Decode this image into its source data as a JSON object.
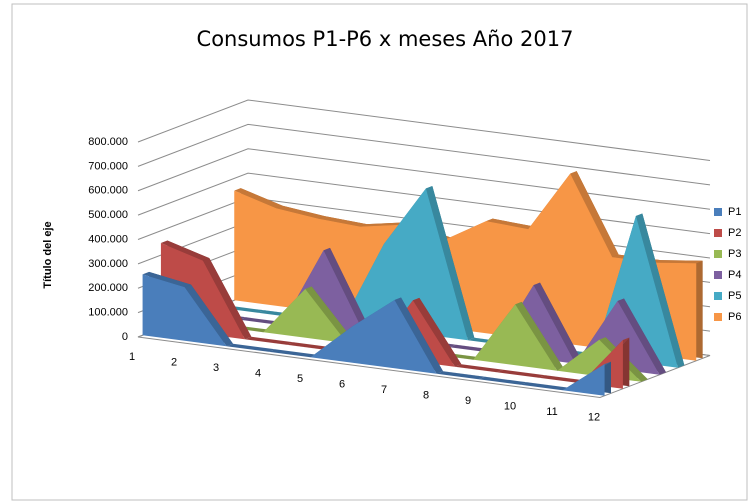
{
  "chart_data": {
    "type": "area",
    "title": "Consumos P1-P6 x meses Año 2017",
    "y_label": "Título del eje",
    "categories": [
      "1",
      "2",
      "3",
      "4",
      "5",
      "6",
      "7",
      "8",
      "9",
      "10",
      "11",
      "12"
    ],
    "series": [
      {
        "name": "P1",
        "color": "#4a7ebb",
        "values": [
          250000,
          220000,
          0,
          0,
          0,
          150000,
          280000,
          0,
          0,
          0,
          0,
          130000
        ]
      },
      {
        "name": "P2",
        "color": "#be4b48",
        "values": [
          350000,
          300000,
          0,
          0,
          0,
          0,
          250000,
          0,
          0,
          0,
          0,
          200000
        ]
      },
      {
        "name": "P3",
        "color": "#98b954",
        "values": [
          0,
          0,
          0,
          200000,
          0,
          0,
          0,
          0,
          250000,
          0,
          150000,
          0
        ]
      },
      {
        "name": "P4",
        "color": "#7d60a0",
        "values": [
          0,
          0,
          0,
          330000,
          0,
          0,
          0,
          0,
          300000,
          0,
          280000,
          0
        ]
      },
      {
        "name": "P5",
        "color": "#46aac5",
        "values": [
          0,
          0,
          0,
          0,
          350000,
          600000,
          0,
          0,
          0,
          0,
          600000,
          0
        ]
      },
      {
        "name": "P6",
        "color": "#f79646",
        "values": [
          450000,
          400000,
          380000,
          370000,
          400000,
          360000,
          460000,
          450000,
          700000,
          380000,
          380000,
          400000
        ]
      }
    ],
    "ylim": [
      0,
      800000
    ],
    "yticks": [
      0,
      {
        "value": 100000,
        "label": "100.000"
      },
      {
        "value": 200000,
        "label": "200.000"
      },
      {
        "value": 300000,
        "label": "300.000"
      },
      {
        "value": 400000,
        "label": "400.000"
      },
      {
        "value": 500000,
        "label": "500.000"
      },
      {
        "value": 600000,
        "label": "600.000"
      },
      {
        "value": 700000,
        "label": "700.000"
      },
      {
        "value": 800000,
        "label": "800.000"
      }
    ],
    "grid": true,
    "legend": "right"
  }
}
